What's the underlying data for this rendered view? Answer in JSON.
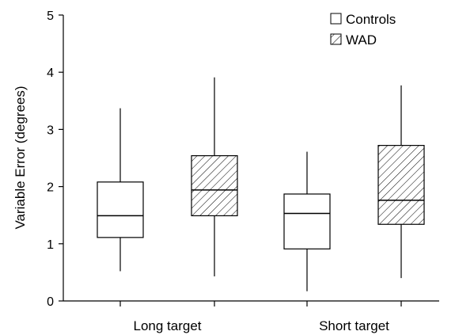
{
  "chart_data": {
    "type": "box",
    "title": "",
    "xlabel": "",
    "ylabel": "Variable Error (degrees)",
    "ylim": [
      0,
      5
    ],
    "yticks": [
      0,
      1,
      2,
      3,
      4,
      5
    ],
    "grid": false,
    "legend_position": "top-right",
    "categories": [
      "Long target",
      "Short target"
    ],
    "series": [
      {
        "name": "Controls",
        "pattern": "none",
        "boxes": [
          {
            "category": "Long target",
            "min": 0.52,
            "q1": 1.11,
            "median": 1.49,
            "q3": 2.08,
            "max": 3.37
          },
          {
            "category": "Short target",
            "min": 0.17,
            "q1": 0.91,
            "median": 1.53,
            "q3": 1.87,
            "max": 2.61
          }
        ]
      },
      {
        "name": "WAD",
        "pattern": "diagonal-hatch",
        "boxes": [
          {
            "category": "Long target",
            "min": 0.43,
            "q1": 1.49,
            "median": 1.94,
            "q3": 2.54,
            "max": 3.91
          },
          {
            "category": "Short target",
            "min": 0.4,
            "q1": 1.34,
            "median": 1.76,
            "q3": 2.72,
            "max": 3.77
          }
        ]
      }
    ]
  }
}
